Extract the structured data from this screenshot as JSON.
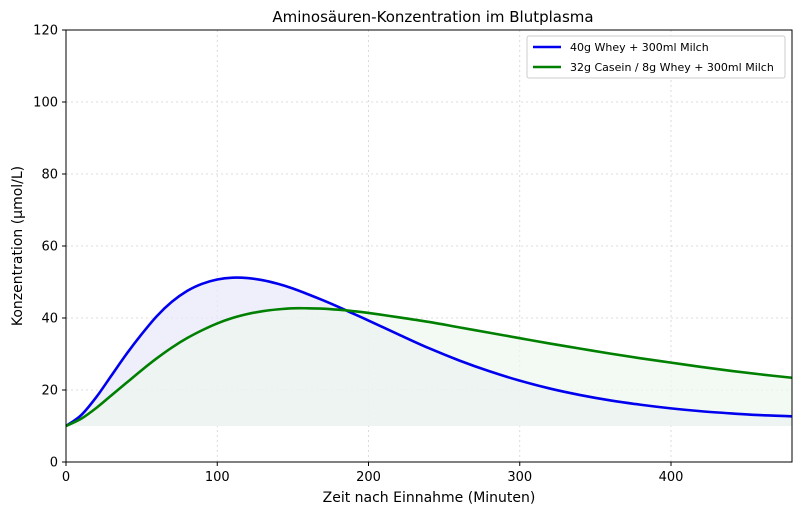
{
  "chart_data": {
    "type": "line",
    "title": "Aminosäuren-Konzentration im Blutplasma",
    "xlabel": "Zeit nach Einnahme (Minuten)",
    "ylabel": "Konzentration (µmol/L)",
    "xlim": [
      0,
      480
    ],
    "ylim": [
      0,
      120
    ],
    "xticks": [
      "0",
      "100",
      "200",
      "300",
      "400"
    ],
    "yticks": [
      "0",
      "20",
      "40",
      "60",
      "80",
      "100",
      "120"
    ],
    "grid": true,
    "legend_position": "top-right",
    "fill_baseline": 10,
    "series": [
      {
        "name": "40g Whey + 300ml Milch",
        "color": "#0000ee",
        "fill": "#e8e8fb",
        "x": [
          0,
          10,
          20,
          30,
          40,
          50,
          60,
          70,
          80,
          90,
          100,
          110,
          120,
          130,
          140,
          150,
          160,
          170,
          180,
          190,
          200,
          220,
          240,
          260,
          280,
          300,
          320,
          340,
          360,
          380,
          400,
          420,
          440,
          460,
          480
        ],
        "y": [
          10,
          13,
          18,
          24,
          30,
          35.5,
          40.5,
          44.5,
          47.5,
          49.5,
          50.7,
          51.2,
          51.1,
          50.5,
          49.5,
          48.2,
          46.6,
          44.9,
          43.1,
          41.2,
          39.3,
          35.4,
          31.6,
          28.2,
          25.2,
          22.6,
          20.4,
          18.6,
          17.1,
          15.9,
          14.9,
          14.1,
          13.5,
          13.0,
          12.7
        ]
      },
      {
        "name": "32g Casein / 8g Whey + 300ml Milch",
        "color": "#008000",
        "fill": "#eef7ee",
        "x": [
          0,
          10,
          20,
          30,
          40,
          50,
          60,
          70,
          80,
          90,
          100,
          110,
          120,
          130,
          140,
          150,
          160,
          170,
          180,
          190,
          200,
          220,
          240,
          260,
          280,
          300,
          320,
          340,
          360,
          380,
          400,
          420,
          440,
          460,
          480
        ],
        "y": [
          10,
          12,
          15,
          18.5,
          22,
          25.5,
          28.8,
          31.8,
          34.4,
          36.6,
          38.5,
          40,
          41.1,
          41.9,
          42.4,
          42.7,
          42.7,
          42.6,
          42.3,
          41.9,
          41.4,
          40.2,
          38.9,
          37.4,
          35.9,
          34.4,
          32.9,
          31.5,
          30.1,
          28.8,
          27.6,
          26.4,
          25.3,
          24.3,
          23.4
        ]
      }
    ]
  }
}
